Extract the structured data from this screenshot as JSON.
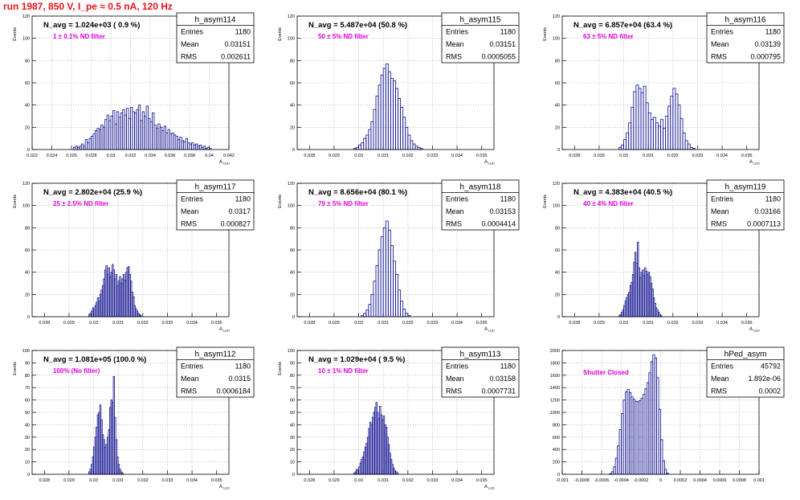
{
  "page_title": "run 1987,   850 V, I_pe ≈ 0.5 nA, 120 Hz",
  "colors": {
    "title": "#e8121b",
    "annotation": "#e000e0",
    "histogram": "#0b0b8c",
    "grid": "#9a9a9a",
    "frame": "#000000"
  },
  "chart_data": [
    {
      "type": "bar",
      "name": "h_asym114",
      "avg_text": "N_avg = 1.024e+03 ( 0.9 %)",
      "annotation": "1 ± 0.1% ND filter",
      "stats": [
        [
          "Entries",
          "1180"
        ],
        [
          "Mean",
          "0.03151"
        ],
        [
          "RMS",
          "0.002611"
        ]
      ],
      "ylabel": "Events",
      "xlabel": "A_LED",
      "xlim": [
        0.022,
        0.042
      ],
      "ylim": [
        0,
        120
      ],
      "xticks": [
        "0.022",
        "0.024",
        "0.026",
        "0.028",
        "0.03",
        "0.032",
        "0.034",
        "0.036",
        "0.038",
        "0.04",
        "0.042"
      ],
      "yticks": [
        "0",
        "20",
        "40",
        "60",
        "80",
        "100",
        "120"
      ],
      "bin_width": 0.0002,
      "x_start": 0.0262,
      "values": [
        2,
        3,
        2,
        3,
        5,
        3,
        9,
        6,
        10,
        12,
        14,
        17,
        19,
        18,
        22,
        20,
        27,
        31,
        26,
        30,
        35,
        23,
        34,
        29,
        33,
        36,
        31,
        37,
        28,
        38,
        34,
        33,
        36,
        40,
        26,
        34,
        30,
        39,
        28,
        25,
        33,
        22,
        19,
        23,
        20,
        17,
        21,
        15,
        18,
        14,
        15,
        13,
        12,
        9,
        11,
        8,
        7,
        10,
        6,
        5,
        6,
        4,
        5,
        3,
        4,
        2,
        3,
        1,
        2,
        1
      ]
    },
    {
      "type": "bar",
      "name": "h_asym115",
      "avg_text": "N_avg = 5.487e+04 (50.8 %)",
      "annotation": "50 ± 5% ND filter",
      "stats": [
        [
          "Entries",
          "1180"
        ],
        [
          "Mean",
          "0.03151"
        ],
        [
          "RMS",
          "0.0005055"
        ]
      ],
      "ylabel": "Events",
      "xlabel": "A_LED",
      "xlim": [
        0.0275,
        0.0355
      ],
      "ylim": [
        0,
        120
      ],
      "xticks": [
        "0.028",
        "0.029",
        "0.03",
        "0.031",
        "0.032",
        "0.033",
        "0.034",
        "0.035"
      ],
      "yticks": [
        "0",
        "20",
        "40",
        "60",
        "80",
        "100",
        "120"
      ],
      "bin_width": 0.0001,
      "x_start": 0.0298,
      "values": [
        1,
        2,
        4,
        6,
        10,
        13,
        18,
        25,
        36,
        48,
        58,
        67,
        73,
        77,
        70,
        64,
        62,
        55,
        46,
        38,
        29,
        20,
        13,
        8,
        5,
        3,
        2,
        1
      ]
    },
    {
      "type": "bar",
      "name": "h_asym116",
      "avg_text": "N_avg = 6.857e+04 (63.4 %)",
      "annotation": "63 ± 5% ND filter",
      "stats": [
        [
          "Entries",
          "1180"
        ],
        [
          "Mean",
          "0.03139"
        ],
        [
          "RMS",
          "0.000795"
        ]
      ],
      "ylabel": "Events",
      "xlabel": "A_LED",
      "xlim": [
        0.0275,
        0.0355
      ],
      "ylim": [
        0,
        120
      ],
      "xticks": [
        "0.028",
        "0.029",
        "0.03",
        "0.031",
        "0.032",
        "0.033",
        "0.034",
        "0.035"
      ],
      "yticks": [
        "0",
        "20",
        "40",
        "60",
        "80",
        "100",
        "120"
      ],
      "bin_width": 0.0001,
      "x_start": 0.0298,
      "values": [
        2,
        4,
        9,
        15,
        24,
        38,
        52,
        58,
        55,
        51,
        57,
        42,
        33,
        27,
        29,
        24,
        21,
        27,
        19,
        30,
        39,
        48,
        55,
        50,
        40,
        28,
        15,
        8,
        5,
        2,
        1
      ]
    },
    {
      "type": "bar",
      "name": "h_asym117",
      "avg_text": "N_avg = 2.802e+04 (25.9 %)",
      "annotation": "25 ± 2.5% ND filter",
      "stats": [
        [
          "Entries",
          "1180"
        ],
        [
          "Mean",
          "0.0317"
        ],
        [
          "RMS",
          "0.000827"
        ]
      ],
      "ylabel": "Events",
      "xlabel": "A_LED",
      "xlim": [
        0.0275,
        0.0355
      ],
      "ylim": [
        0,
        120
      ],
      "xticks": [
        "0.028",
        "0.029",
        "0.03",
        "0.031",
        "0.032",
        "0.033",
        "0.034",
        "0.035"
      ],
      "yticks": [
        "0",
        "20",
        "40",
        "60",
        "80",
        "100",
        "120"
      ],
      "bin_width": 5e-05,
      "x_start": 0.0298,
      "values": [
        2,
        3,
        5,
        8,
        6,
        10,
        13,
        17,
        14,
        20,
        24,
        28,
        34,
        42,
        46,
        38,
        44,
        36,
        40,
        47,
        42,
        34,
        38,
        28,
        32,
        36,
        30,
        34,
        38,
        33,
        40,
        44,
        45,
        38,
        32,
        22,
        18,
        10,
        7,
        5,
        3,
        2,
        1
      ]
    },
    {
      "type": "bar",
      "name": "h_asym118",
      "avg_text": "N_avg = 8.656e+04 (80.1 %)",
      "annotation": "79 ± 5% ND filter",
      "stats": [
        [
          "Entries",
          "1180"
        ],
        [
          "Mean",
          "0.03153"
        ],
        [
          "RMS",
          "0.0004414"
        ]
      ],
      "ylabel": "Events",
      "xlabel": "A_LED",
      "xlim": [
        0.0275,
        0.0355
      ],
      "ylim": [
        0,
        120
      ],
      "xticks": [
        "0.028",
        "0.029",
        "0.03",
        "0.031",
        "0.032",
        "0.033",
        "0.034",
        "0.035"
      ],
      "yticks": [
        "0",
        "20",
        "40",
        "60",
        "80",
        "100",
        "120"
      ],
      "bin_width": 0.0001,
      "x_start": 0.0301,
      "values": [
        1,
        3,
        6,
        11,
        20,
        32,
        46,
        60,
        72,
        80,
        86,
        78,
        64,
        50,
        38,
        24,
        14,
        7,
        3,
        1
      ]
    },
    {
      "type": "bar",
      "name": "h_asym119",
      "avg_text": "N_avg = 4.383e+04 (40.5 %)",
      "annotation": "40 ± 4% ND filter",
      "stats": [
        [
          "Entries",
          "1180"
        ],
        [
          "Mean",
          "0.03166"
        ],
        [
          "RMS",
          "0.0007113"
        ]
      ],
      "ylabel": "Events",
      "xlabel": "A_LED",
      "xlim": [
        0.0275,
        0.0355
      ],
      "ylim": [
        0,
        120
      ],
      "xticks": [
        "0.028",
        "0.029",
        "0.03",
        "0.031",
        "0.032",
        "0.033",
        "0.034",
        "0.035"
      ],
      "yticks": [
        "0",
        "20",
        "40",
        "60",
        "80",
        "100",
        "120"
      ],
      "bin_width": 5e-05,
      "x_start": 0.0298,
      "values": [
        1,
        2,
        4,
        6,
        10,
        14,
        17,
        20,
        22,
        28,
        31,
        38,
        49,
        58,
        48,
        67,
        44,
        35,
        40,
        42,
        37,
        44,
        41,
        38,
        40,
        36,
        30,
        25,
        17,
        12,
        8,
        6,
        4,
        2,
        1
      ]
    },
    {
      "type": "bar",
      "name": "h_asym112",
      "avg_text": "N_avg = 1.081e+05 (100.0 %)",
      "annotation": "100% (No filter)",
      "stats": [
        [
          "Entries",
          "1180"
        ],
        [
          "Mean",
          "0.0315"
        ],
        [
          "RMS",
          "0.0006184"
        ]
      ],
      "ylabel": "Events",
      "xlabel": "A_LED",
      "xlim": [
        0.0275,
        0.0355
      ],
      "ylim": [
        0,
        100
      ],
      "xticks": [
        "0.028",
        "0.029",
        "0.03",
        "0.031",
        "0.032",
        "0.033",
        "0.034",
        "0.035"
      ],
      "yticks": [
        "0",
        "10",
        "20",
        "30",
        "40",
        "50",
        "60",
        "70",
        "80",
        "90",
        "100"
      ],
      "bin_width": 5e-05,
      "x_start": 0.0298,
      "values": [
        2,
        4,
        8,
        14,
        22,
        30,
        38,
        48,
        50,
        56,
        44,
        32,
        28,
        22,
        24,
        30,
        36,
        54,
        60,
        58,
        79,
        46,
        28,
        14,
        8,
        4,
        2,
        1
      ]
    },
    {
      "type": "bar",
      "name": "h_asym113",
      "avg_text": "N_avg = 1.029e+04 ( 9.5 %)",
      "annotation": "10 ± 1% ND filter",
      "stats": [
        [
          "Entries",
          "1180"
        ],
        [
          "Mean",
          "0.03158"
        ],
        [
          "RMS",
          "0.0007731"
        ]
      ],
      "ylabel": "Events",
      "xlabel": "A_LED",
      "xlim": [
        0.0275,
        0.0355
      ],
      "ylim": [
        0,
        100
      ],
      "xticks": [
        "0.028",
        "0.029",
        "0.03",
        "0.031",
        "0.032",
        "0.033",
        "0.034",
        "0.035"
      ],
      "yticks": [
        "0",
        "10",
        "20",
        "30",
        "40",
        "50",
        "60",
        "70",
        "80",
        "90",
        "100"
      ],
      "bin_width": 5e-05,
      "x_start": 0.0298,
      "values": [
        1,
        2,
        4,
        3,
        6,
        9,
        12,
        14,
        18,
        22,
        25,
        30,
        37,
        42,
        40,
        46,
        50,
        54,
        58,
        50,
        45,
        55,
        48,
        44,
        47,
        40,
        38,
        30,
        24,
        17,
        12,
        8,
        5,
        3,
        2,
        1
      ]
    },
    {
      "type": "bar",
      "name": "hPed_asym",
      "avg_text": "",
      "annotation": "Shutter Closed",
      "stats": [
        [
          "Entries",
          "45792"
        ],
        [
          "Mean",
          "1.892e-06"
        ],
        [
          "RMS",
          "0.0002"
        ]
      ],
      "ylabel": "",
      "xlabel": "",
      "xlim": [
        -0.001,
        0.001
      ],
      "ylim": [
        0,
        2000
      ],
      "xticks": [
        "-0.001",
        "-0.0008",
        "-0.0006",
        "-0.0004",
        "-0.0002",
        "0",
        "0.0002",
        "0.0004",
        "0.0006",
        "0.0008",
        "0.001"
      ],
      "yticks": [
        "0",
        "200",
        "400",
        "600",
        "800",
        "1000",
        "1200",
        "1400",
        "1600",
        "1800",
        "2000"
      ],
      "bin_width": 2e-05,
      "x_start": -0.00052,
      "values": [
        10,
        40,
        120,
        260,
        460,
        720,
        980,
        1200,
        1330,
        1370,
        1320,
        1250,
        1210,
        1180,
        1170,
        1190,
        1230,
        1290,
        1380,
        1480,
        1640,
        1820,
        1930,
        1880,
        1560,
        1050,
        560,
        220,
        80,
        20
      ]
    }
  ]
}
